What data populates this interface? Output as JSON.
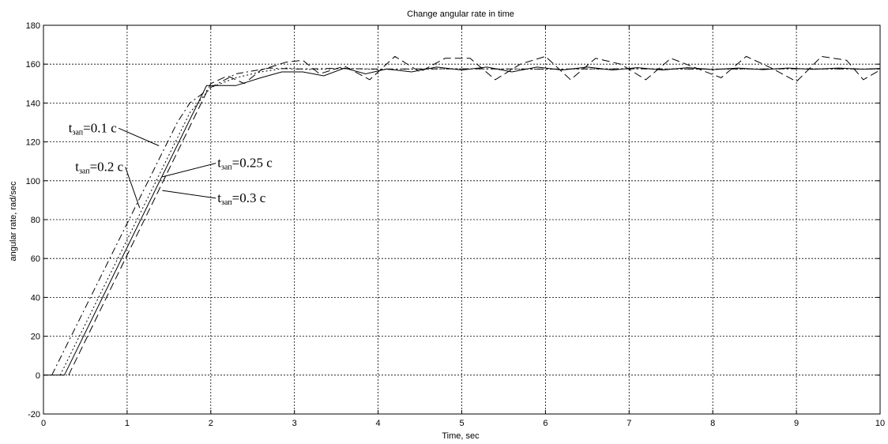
{
  "chart_data": {
    "type": "line",
    "title": "Change angular rate in time",
    "xlabel": "Time, sec",
    "ylabel": "angular rate, rad/sec",
    "xlim": [
      0,
      10
    ],
    "ylim": [
      -20,
      180
    ],
    "xticks": [
      "0",
      "1",
      "2",
      "3",
      "4",
      "5",
      "6",
      "7",
      "8",
      "9",
      "10"
    ],
    "yticks": [
      "-20",
      "0",
      "20",
      "40",
      "60",
      "80",
      "100",
      "120",
      "140",
      "160",
      "180"
    ],
    "grid": true,
    "series": [
      {
        "name": "tзап=0.1 c",
        "style": "dash-dot",
        "points": [
          [
            0.1,
            0
          ],
          [
            1.6,
            130
          ],
          [
            1.75,
            140
          ],
          [
            2.0,
            148
          ],
          [
            2.3,
            155
          ],
          [
            2.7,
            158
          ],
          [
            3.0,
            157.5
          ],
          [
            3.5,
            157.8
          ],
          [
            4.0,
            157.5
          ],
          [
            5.0,
            157.6
          ],
          [
            6.0,
            157.5
          ],
          [
            7.0,
            157.6
          ],
          [
            8.0,
            157.5
          ],
          [
            9.0,
            157.6
          ],
          [
            10.0,
            157.5
          ]
        ]
      },
      {
        "name": "tзап=0.2 c",
        "style": "dotted",
        "points": [
          [
            0.2,
            0
          ],
          [
            1.75,
            135
          ],
          [
            2.0,
            148
          ],
          [
            2.3,
            153
          ],
          [
            2.6,
            156
          ],
          [
            2.9,
            158
          ],
          [
            3.2,
            157.2
          ],
          [
            3.6,
            157.8
          ],
          [
            4.0,
            157.3
          ],
          [
            5.0,
            157.6
          ],
          [
            6.0,
            157.4
          ],
          [
            7.0,
            157.6
          ],
          [
            8.0,
            157.4
          ],
          [
            9.0,
            157.6
          ],
          [
            10.0,
            157.5
          ]
        ]
      },
      {
        "name": "tзап=0.25 c",
        "style": "solid",
        "points": [
          [
            0,
            0
          ],
          [
            0.25,
            0
          ],
          [
            1.95,
            149
          ],
          [
            2.3,
            149
          ],
          [
            2.6,
            153
          ],
          [
            2.85,
            156
          ],
          [
            3.1,
            156
          ],
          [
            3.35,
            154
          ],
          [
            3.6,
            158
          ],
          [
            3.85,
            155
          ],
          [
            4.1,
            157.5
          ],
          [
            4.4,
            156
          ],
          [
            4.7,
            158.5
          ],
          [
            5.0,
            157
          ],
          [
            5.3,
            158.5
          ],
          [
            5.6,
            156
          ],
          [
            5.9,
            158.5
          ],
          [
            6.2,
            157
          ],
          [
            6.5,
            158.5
          ],
          [
            6.8,
            157
          ],
          [
            7.1,
            158.2
          ],
          [
            7.4,
            157
          ],
          [
            7.7,
            158.2
          ],
          [
            8.0,
            157.2
          ],
          [
            8.3,
            158
          ],
          [
            8.6,
            157.2
          ],
          [
            8.9,
            158
          ],
          [
            9.2,
            157.3
          ],
          [
            9.5,
            158
          ],
          [
            9.8,
            157.4
          ],
          [
            10.0,
            157.8
          ]
        ]
      },
      {
        "name": "tзап=0.3 c",
        "style": "dashed",
        "points": [
          [
            0.3,
            0
          ],
          [
            2.0,
            150
          ],
          [
            2.2,
            154
          ],
          [
            2.4,
            150
          ],
          [
            2.6,
            157
          ],
          [
            2.9,
            161
          ],
          [
            3.1,
            162
          ],
          [
            3.3,
            155
          ],
          [
            3.6,
            159
          ],
          [
            3.9,
            152
          ],
          [
            4.2,
            164
          ],
          [
            4.5,
            156
          ],
          [
            4.8,
            163
          ],
          [
            5.1,
            163
          ],
          [
            5.4,
            152
          ],
          [
            5.7,
            160
          ],
          [
            6.0,
            164
          ],
          [
            6.3,
            152
          ],
          [
            6.6,
            163
          ],
          [
            6.9,
            160
          ],
          [
            7.2,
            152
          ],
          [
            7.5,
            163
          ],
          [
            7.8,
            158
          ],
          [
            8.1,
            153
          ],
          [
            8.4,
            164
          ],
          [
            8.7,
            158
          ],
          [
            9.0,
            151
          ],
          [
            9.3,
            164
          ],
          [
            9.6,
            162
          ],
          [
            9.8,
            152
          ],
          [
            10.0,
            157
          ]
        ]
      }
    ],
    "annotations": [
      {
        "base": "t",
        "sub": "зап",
        "rest": "=0.1 c",
        "anchor": [
          0.3,
          125
        ],
        "target": [
          1.38,
          118
        ]
      },
      {
        "base": "t",
        "sub": "зап",
        "rest": "=0.2 c",
        "anchor": [
          0.38,
          105
        ],
        "target": [
          1.15,
          86
        ]
      },
      {
        "base": "t",
        "sub": "зап",
        "rest": "=0.25 c",
        "anchor": [
          2.08,
          107
        ],
        "target": [
          1.42,
          102
        ]
      },
      {
        "base": "t",
        "sub": "зап",
        "rest": "=0.3 c",
        "anchor": [
          2.08,
          89
        ],
        "target": [
          1.42,
          95
        ]
      }
    ]
  }
}
